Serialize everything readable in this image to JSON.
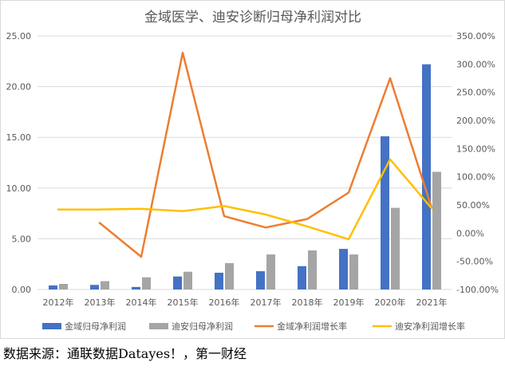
{
  "chart_data": {
    "type": "bar",
    "title": "金域医学、迪安诊断归母净利润对比",
    "categories": [
      "2012年",
      "2013年",
      "2014年",
      "2015年",
      "2016年",
      "2017年",
      "2018年",
      "2019年",
      "2020年",
      "2021年"
    ],
    "y_left": {
      "ylim": [
        0,
        25
      ],
      "ticks": [
        "0.00",
        "5.00",
        "10.00",
        "15.00",
        "20.00",
        "25.00"
      ]
    },
    "y_right": {
      "ylim": [
        -100,
        350
      ],
      "ticks": [
        "-100.00%",
        "-50.00%",
        "0.00%",
        "50.00%",
        "100.00%",
        "150.00%",
        "200.00%",
        "250.00%",
        "300.00%",
        "350.00%"
      ]
    },
    "series": [
      {
        "name": "金域归母净利润",
        "type": "bar",
        "axis": "left",
        "color": "#4472c4",
        "values": [
          0.4,
          0.45,
          0.25,
          1.28,
          1.65,
          1.8,
          2.3,
          4.0,
          15.1,
          22.2
        ]
      },
      {
        "name": "迪安归母净利润",
        "type": "bar",
        "axis": "left",
        "color": "#a5a5a5",
        "values": [
          0.55,
          0.82,
          1.2,
          1.75,
          2.6,
          3.45,
          3.85,
          3.45,
          8.05,
          11.6
        ]
      },
      {
        "name": "金域净利润增长率",
        "type": "line",
        "axis": "right",
        "color": "#ed7d31",
        "values": [
          null,
          18,
          -42,
          320,
          30,
          10,
          25,
          72,
          275,
          45
        ]
      },
      {
        "name": "迪安净利润增长率",
        "type": "line",
        "axis": "right",
        "color": "#ffc000",
        "values": [
          42,
          42,
          43,
          39,
          48,
          33,
          12,
          -11,
          131,
          44
        ]
      }
    ],
    "grid": true,
    "legend_position": "bottom"
  },
  "source_note": "数据来源：通联数据Datayes！，第一财经"
}
